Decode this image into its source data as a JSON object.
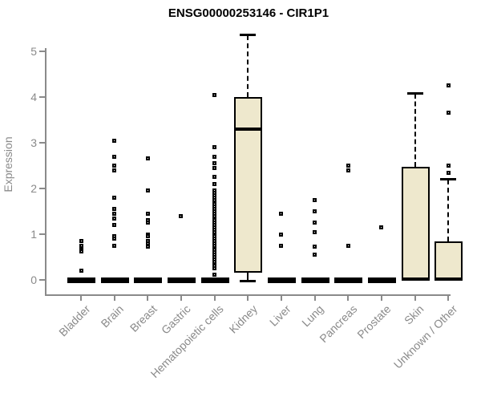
{
  "title": "ENSG00000253146 - CIR1P1",
  "chart_data": {
    "type": "boxplot",
    "title": "ENSG00000253146 - CIR1P1",
    "xlabel": "",
    "ylabel": "Expression",
    "ylim": [
      0,
      5
    ],
    "yticks": [
      0,
      1,
      2,
      3,
      4,
      5
    ],
    "grid": false,
    "legend": "none",
    "categories": [
      "Bladder",
      "Brain",
      "Breast",
      "Gastric",
      "Hematopoietic cells",
      "Kidney",
      "Liver",
      "Lung",
      "Pancreas",
      "Prostate",
      "Skin",
      "Unknown / Other"
    ],
    "series": [
      {
        "category": "Bladder",
        "q1": 0,
        "median": 0,
        "q3": 0,
        "whisker_low": 0,
        "whisker_high": 0,
        "outliers": [
          0.85,
          0.75,
          0.68,
          0.65,
          0.62,
          0.2
        ]
      },
      {
        "category": "Brain",
        "q1": 0,
        "median": 0,
        "q3": 0,
        "whisker_low": 0,
        "whisker_high": 0,
        "outliers": [
          3.05,
          2.7,
          2.5,
          2.4,
          1.8,
          1.55,
          1.45,
          1.35,
          1.2,
          0.95,
          0.9,
          0.75
        ]
      },
      {
        "category": "Breast",
        "q1": 0,
        "median": 0,
        "q3": 0,
        "whisker_low": 0,
        "whisker_high": 0,
        "outliers": [
          2.65,
          1.95,
          1.45,
          1.3,
          1.25,
          1.0,
          0.95,
          0.85,
          0.8,
          0.72
        ]
      },
      {
        "category": "Gastric",
        "q1": 0,
        "median": 0,
        "q3": 0,
        "whisker_low": 0,
        "whisker_high": 0,
        "outliers": [
          1.4
        ]
      },
      {
        "category": "Hematopoietic cells",
        "q1": 0,
        "median": 0,
        "q3": 0,
        "whisker_low": 0,
        "whisker_high": 0,
        "outliers": [
          4.05,
          2.9,
          2.7,
          2.55,
          2.45,
          2.25,
          2.1,
          1.95,
          1.9,
          1.85,
          1.8,
          1.75,
          1.7,
          1.65,
          1.6,
          1.55,
          1.5,
          1.45,
          1.4,
          1.35,
          1.3,
          1.25,
          1.2,
          1.15,
          1.1,
          1.05,
          1.0,
          0.95,
          0.9,
          0.85,
          0.8,
          0.75,
          0.7,
          0.65,
          0.6,
          0.55,
          0.5,
          0.45,
          0.4,
          0.35,
          0.3,
          0.25,
          0.12
        ]
      },
      {
        "category": "Kidney",
        "q1": 0.15,
        "median": 3.3,
        "q3": 4.0,
        "whisker_low": 0,
        "whisker_high": 5.35,
        "outliers": []
      },
      {
        "category": "Liver",
        "q1": 0,
        "median": 0,
        "q3": 0,
        "whisker_low": 0,
        "whisker_high": 0,
        "outliers": [
          1.45,
          1.0,
          0.75
        ]
      },
      {
        "category": "Lung",
        "q1": 0,
        "median": 0,
        "q3": 0,
        "whisker_low": 0,
        "whisker_high": 0,
        "outliers": [
          1.75,
          1.5,
          1.25,
          1.05,
          0.72,
          0.56
        ]
      },
      {
        "category": "Pancreas",
        "q1": 0,
        "median": 0,
        "q3": 0,
        "whisker_low": 0,
        "whisker_high": 0,
        "outliers": [
          2.5,
          2.4,
          0.75
        ]
      },
      {
        "category": "Prostate",
        "q1": 0,
        "median": 0,
        "q3": 0,
        "whisker_low": 0,
        "whisker_high": 0,
        "outliers": [
          1.15
        ]
      },
      {
        "category": "Skin",
        "q1": 0,
        "median": 0.02,
        "q3": 2.47,
        "whisker_low": 0,
        "whisker_high": 4.07,
        "outliers": []
      },
      {
        "category": "Unknown / Other",
        "q1": 0,
        "median": 0.02,
        "q3": 0.85,
        "whisker_low": 0,
        "whisker_high": 2.2,
        "outliers": [
          4.25,
          3.65,
          2.5,
          2.35
        ]
      }
    ],
    "colors": {
      "box_fill": "#EEE8CD",
      "box_border": "#000000",
      "median": "#000000",
      "axis": "#8a8a8a",
      "tick_labels": "#8a8a8a",
      "title": "#000000",
      "background": "#ffffff"
    }
  }
}
